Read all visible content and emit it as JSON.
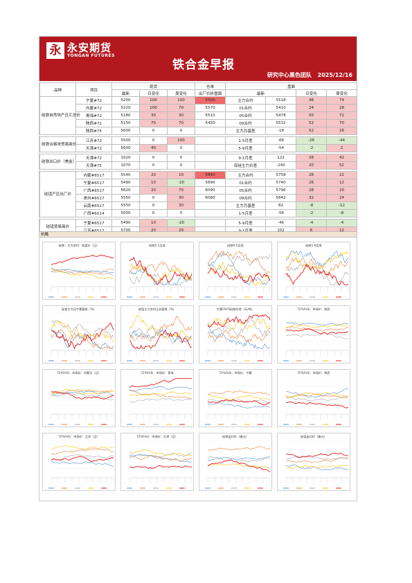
{
  "header": {
    "logo_mark": "永",
    "logo_cn": "永安期货",
    "logo_en": "YONGAN FUTURES",
    "title": "铁合金早报",
    "team": "研究中心黑色团队",
    "date": "2025/12/16"
  },
  "table": {
    "head1": {
      "c1": "品种",
      "c2": "项目",
      "spot": "现货",
      "warehouse": "仓单",
      "futures": "盘面"
    },
    "head2": {
      "latest": "最新",
      "dchg": "日变化",
      "wchg": "周变化",
      "factory": "出厂价折盘面",
      "flatest": "最新",
      "fdchg": "日变化",
      "fwchg": "周变化"
    },
    "sections": [
      {
        "cat": "硅铁自然块产区汇总价",
        "rows": [
          {
            "item": "宁夏#72",
            "latest": "5200",
            "dchg": "100",
            "wchg": "100",
            "wh": "5500",
            "fname": "主力合约",
            "flatest": "5518",
            "fd": "48",
            "fw": "74"
          },
          {
            "item": "内蒙#72",
            "latest": "5220",
            "dchg": "100",
            "wchg": "70",
            "wh": "5570",
            "fname": "01合约",
            "flatest": "5410",
            "fd": "24",
            "fw": "28"
          },
          {
            "item": "青海#72",
            "latest": "5180",
            "dchg": "30",
            "wchg": "30",
            "wh": "5510",
            "fname": "05合约",
            "flatest": "5478",
            "fd": "50",
            "fw": "72"
          },
          {
            "item": "陕西#72",
            "latest": "5150",
            "dchg": "70",
            "wchg": "70",
            "wh": "5450",
            "fname": "09合约",
            "flatest": "5532",
            "fd": "52",
            "fw": "70"
          },
          {
            "item": "陕西#75",
            "latest": "5600",
            "dchg": "0",
            "wchg": "0",
            "wh": "",
            "fname": "主力月基差",
            "flatest": "-18",
            "fd": "52",
            "fw": "26"
          }
        ]
      },
      {
        "cat": "硅铁合格块贸易商价",
        "rows": [
          {
            "item": "江苏#72",
            "latest": "5500",
            "dchg": "0",
            "wchg": "100",
            "wh": "",
            "fname": "1-5月差",
            "flatest": "-68",
            "fd": "-26",
            "fw": "-44"
          },
          {
            "item": "天津#72",
            "latest": "5600",
            "dchg": "40",
            "wchg": "0",
            "wh": "",
            "fname": "5-9月差",
            "flatest": "-54",
            "fd": "-2",
            "fw": "2"
          }
        ]
      },
      {
        "cat": "硅铁出口价（美金）",
        "rows": [
          {
            "item": "天津#72",
            "latest": "1020",
            "dchg": "0",
            "wchg": "0",
            "wh": "",
            "fname": "9-1月差",
            "flatest": "122",
            "fd": "28",
            "fw": "42"
          },
          {
            "item": "天津#75",
            "latest": "1070",
            "dchg": "0",
            "wchg": "0",
            "wh": "",
            "fname": "双硅主力价差",
            "flatest": "-240",
            "fd": "20",
            "fw": "52"
          }
        ]
      },
      {
        "cat": "硅锰产区出厂价",
        "rows": [
          {
            "item": "内蒙#6517",
            "latest": "5540",
            "dchg": "20",
            "wchg": "10",
            "wh": "5840",
            "fname": "主力合约",
            "flatest": "5758",
            "fd": "28",
            "fw": "22"
          },
          {
            "item": "宁夏#6517",
            "latest": "5490",
            "dchg": "10",
            "wchg": "-20",
            "wh": "5890",
            "fname": "01合约",
            "flatest": "5740",
            "fd": "26",
            "fw": "12"
          },
          {
            "item": "广西#6517",
            "latest": "5620",
            "dchg": "20",
            "wchg": "70",
            "wh": "6090",
            "fname": "05合约",
            "flatest": "5796",
            "fd": "28",
            "fw": "20"
          },
          {
            "item": "贵州#6517",
            "latest": "5550",
            "dchg": "0",
            "wchg": "30",
            "wh": "6080",
            "fname": "09合约",
            "flatest": "5842",
            "fd": "32",
            "fw": "24"
          },
          {
            "item": "云南#6517",
            "latest": "5550",
            "dchg": "0",
            "wchg": "30",
            "wh": "",
            "fname": "主力月基差",
            "flatest": "82",
            "fd": "-8",
            "fw": "-12"
          },
          {
            "item": "广西#6014",
            "latest": "5000",
            "dchg": "0",
            "wchg": "0",
            "wh": "",
            "fname": "1-5月差",
            "flatest": "-56",
            "fd": "-2",
            "fw": "-8"
          }
        ]
      },
      {
        "cat": "硅锰贸易商价",
        "rows": [
          {
            "item": "宁夏#6517",
            "latest": "5490",
            "dchg": "10",
            "wchg": "-20",
            "wh": "",
            "fname": "5-9月差",
            "flatest": "-46",
            "fd": "-4",
            "fw": "-4"
          },
          {
            "item": "江苏#6517",
            "latest": "5700",
            "dchg": "20",
            "wchg": "20",
            "wh": "",
            "fname": "9-1月差",
            "flatest": "102",
            "fd": "6",
            "fw": "12"
          }
        ]
      }
    ]
  },
  "charts_header": "价格",
  "charts": [
    {
      "title": "硅铁：主力合约：收盘价（日）"
    },
    {
      "title": "硅铁5-1月差"
    },
    {
      "title": "硅铁9-5月差"
    },
    {
      "title": "硅铁1-9月差"
    },
    {
      "title": "硅铁主力月宁夏基差（%）"
    },
    {
      "title": "硅锰主力合约江苏基差（%）"
    },
    {
      "title": "宁夏FA/FS硅铁价差（元/吨）"
    },
    {
      "title": "72%FeSi：市场价：陕西"
    },
    {
      "title": "72%FeSi：市场价：内蒙古（日）"
    },
    {
      "title": "72%FeSi：市场价：青海"
    },
    {
      "title": "72%FeSi：市场价：宁夏"
    },
    {
      "title": "75%FeSi：市场价：陕西"
    },
    {
      "title": "72%FeSi：市场价：江苏（日）"
    },
    {
      "title": "72%FeSi：市场价：天津（日）"
    },
    {
      "title": "硅铁出口价（美元）"
    },
    {
      "title": "硅锰出口价（美元）"
    }
  ],
  "colors": {
    "red": "#b3181f",
    "pink": "#f6c5c5",
    "green": "#d9ecd0",
    "s1": "#4f91d1",
    "s2": "#ed7d31",
    "s3": "#a5a5a5",
    "s4": "#ffc000",
    "s5": "#e31a1c"
  }
}
